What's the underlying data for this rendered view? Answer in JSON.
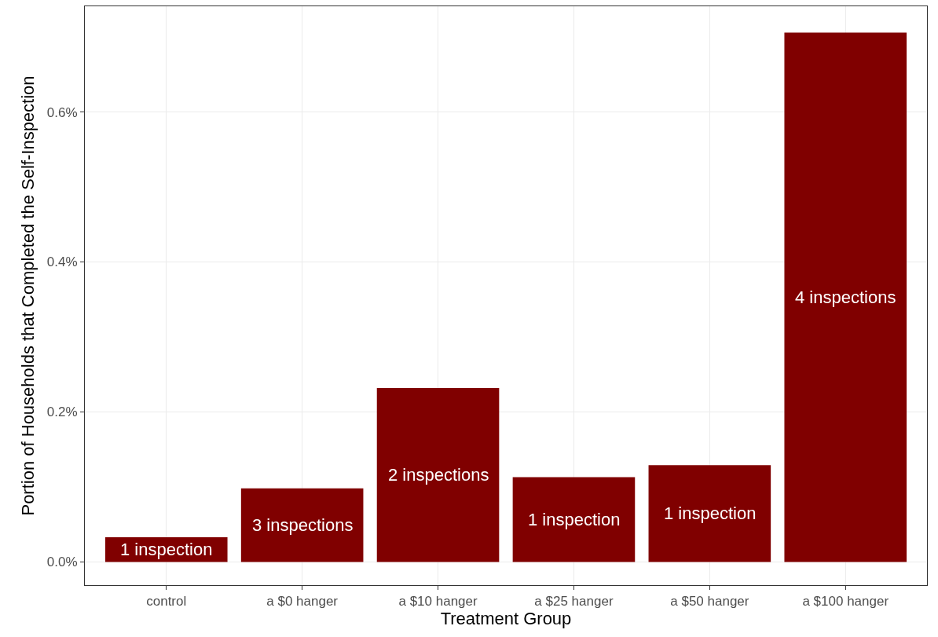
{
  "chart_data": {
    "type": "bar",
    "xlabel": "Treatment Group",
    "ylabel": "Portion of Households that Completed the Self-Inspection",
    "categories": [
      "control",
      "a $0 hanger",
      "a $10 hanger",
      "a $25 hanger",
      "a $50 hanger",
      "a $100 hanger"
    ],
    "values": [
      0.033,
      0.098,
      0.232,
      0.113,
      0.129,
      0.706
    ],
    "annotations": [
      "1 inspection",
      "3 inspections",
      "2 inspections",
      "1 inspection",
      "1 inspection",
      "4 inspections"
    ],
    "color": "#800000",
    "ylim": [
      -0.031,
      0.741
    ],
    "yticks": [
      {
        "value": 0,
        "label": "0.0%"
      },
      {
        "value": 0.2,
        "label": "0.2%"
      },
      {
        "value": 0.4,
        "label": "0.4%"
      },
      {
        "value": 0.6,
        "label": "0.6%"
      }
    ],
    "grid": true
  }
}
